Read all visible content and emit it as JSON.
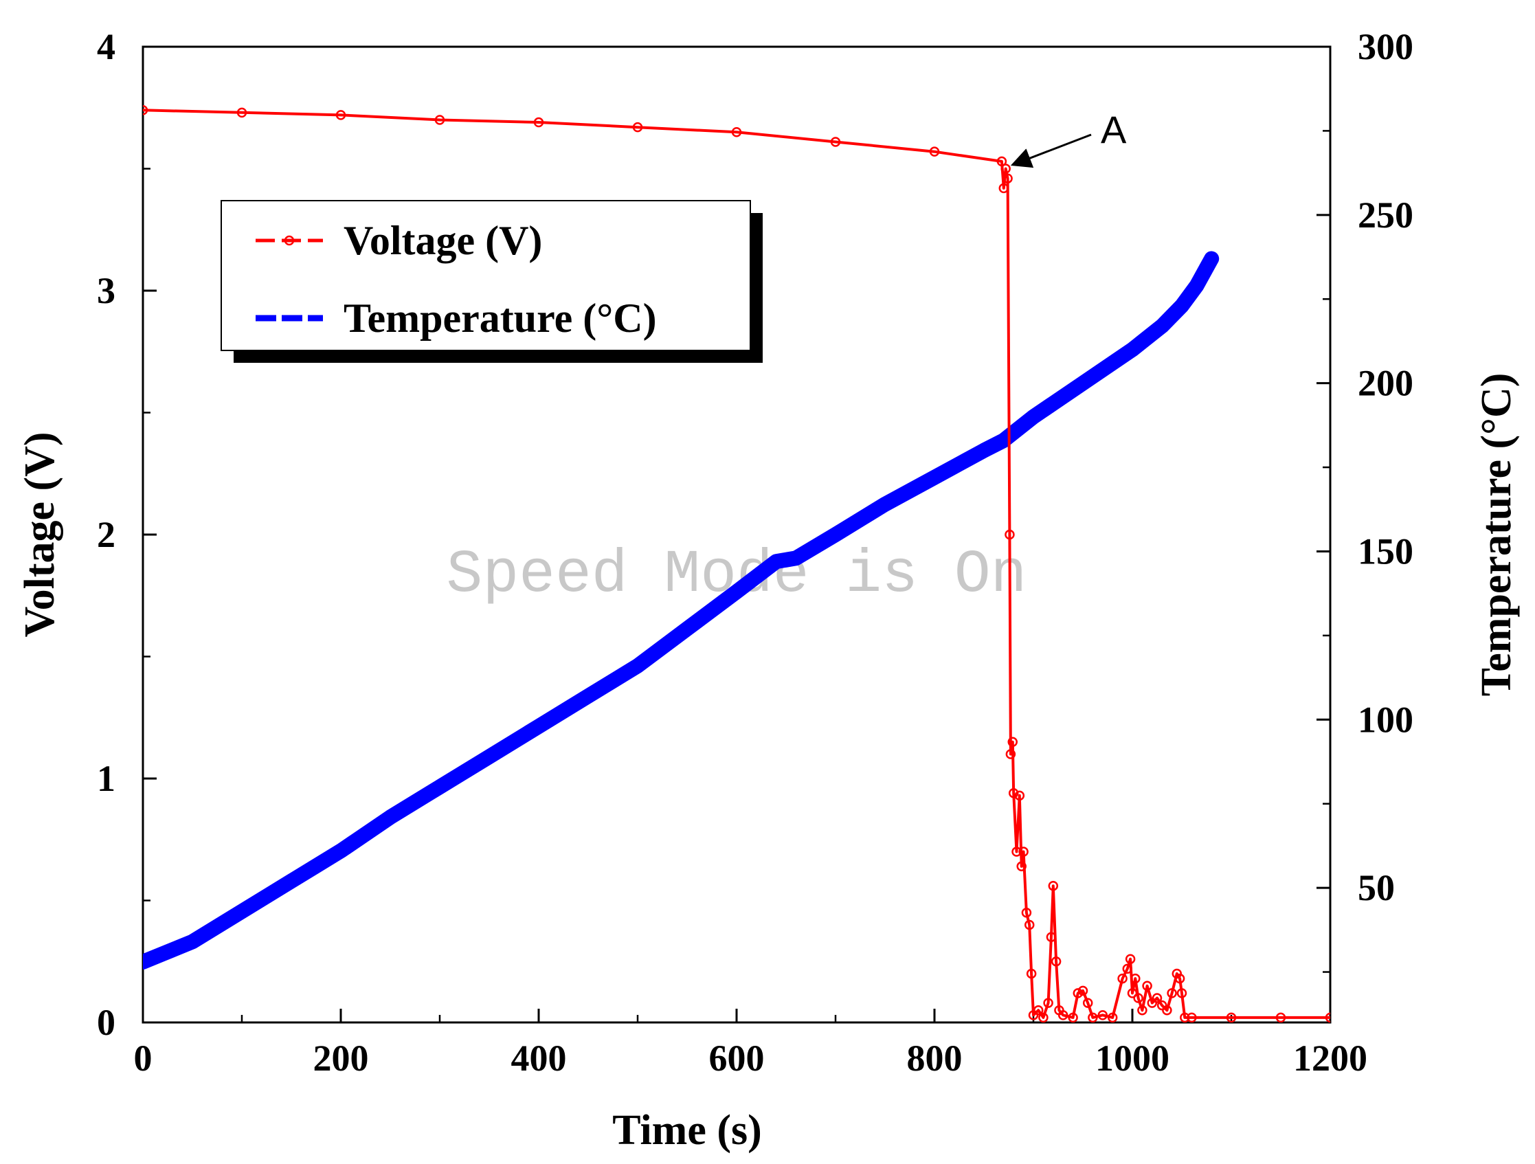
{
  "chart_data": {
    "type": "line",
    "title": "",
    "xlabel": "Time (s)",
    "ylabel_left": "Voltage (V)",
    "ylabel_right": "Temperature (°C)",
    "xlim": [
      0,
      1200
    ],
    "ylim_left": [
      0,
      4
    ],
    "ylim_right": [
      10,
      300
    ],
    "x_ticks": [
      "0",
      "200",
      "400",
      "600",
      "800",
      "1000",
      "1200"
    ],
    "y_left_ticks": [
      "0",
      "1",
      "2",
      "3",
      "4"
    ],
    "y_right_ticks": [
      "50",
      "100",
      "150",
      "200",
      "250",
      "300"
    ],
    "grid": false,
    "legend_position": "top-left",
    "series": [
      {
        "name": "Voltage (V)",
        "axis": "left",
        "color": "#ff0000",
        "marker": "open-circle",
        "x": [
          0,
          100,
          200,
          300,
          400,
          500,
          600,
          700,
          800,
          868,
          870,
          872,
          874,
          876,
          877,
          879,
          880,
          883,
          886,
          888,
          890,
          893,
          896,
          898,
          900,
          905,
          910,
          915,
          918,
          920,
          923,
          926,
          930,
          940,
          945,
          950,
          955,
          960,
          970,
          980,
          990,
          995,
          998,
          1000,
          1003,
          1006,
          1010,
          1015,
          1020,
          1025,
          1030,
          1035,
          1040,
          1045,
          1048,
          1050,
          1053,
          1060,
          1100,
          1150,
          1200
        ],
        "y": [
          3.74,
          3.73,
          3.72,
          3.7,
          3.69,
          3.67,
          3.65,
          3.61,
          3.57,
          3.53,
          3.42,
          3.5,
          3.46,
          2.0,
          1.1,
          1.15,
          0.94,
          0.7,
          0.93,
          0.64,
          0.7,
          0.45,
          0.4,
          0.2,
          0.03,
          0.05,
          0.02,
          0.08,
          0.35,
          0.56,
          0.25,
          0.05,
          0.03,
          0.02,
          0.12,
          0.13,
          0.08,
          0.02,
          0.03,
          0.02,
          0.18,
          0.22,
          0.26,
          0.12,
          0.18,
          0.1,
          0.05,
          0.15,
          0.08,
          0.1,
          0.07,
          0.05,
          0.12,
          0.2,
          0.18,
          0.12,
          0.02,
          0.02,
          0.02,
          0.02,
          0.02
        ]
      },
      {
        "name": "Temperature (°C)",
        "axis": "right",
        "color": "#0000ff",
        "marker": "filled-square",
        "x": [
          0,
          50,
          100,
          150,
          200,
          250,
          300,
          350,
          400,
          450,
          500,
          550,
          600,
          640,
          660,
          700,
          750,
          800,
          850,
          870,
          900,
          950,
          1000,
          1030,
          1050,
          1065,
          1080
        ],
        "y": [
          28,
          34,
          43,
          52,
          61,
          71,
          80,
          89,
          98,
          107,
          116,
          127,
          138,
          147,
          148,
          155,
          164,
          172,
          180,
          183,
          190,
          200,
          210,
          217,
          223,
          229,
          237
        ]
      }
    ],
    "annotations": [
      {
        "text": "A",
        "x": 872,
        "y": 3.53,
        "axis": "left"
      }
    ],
    "watermark": "Speed Mode is On"
  },
  "legend": {
    "voltage_label": "Voltage (V)",
    "temperature_label": "Temperature (°C)"
  }
}
